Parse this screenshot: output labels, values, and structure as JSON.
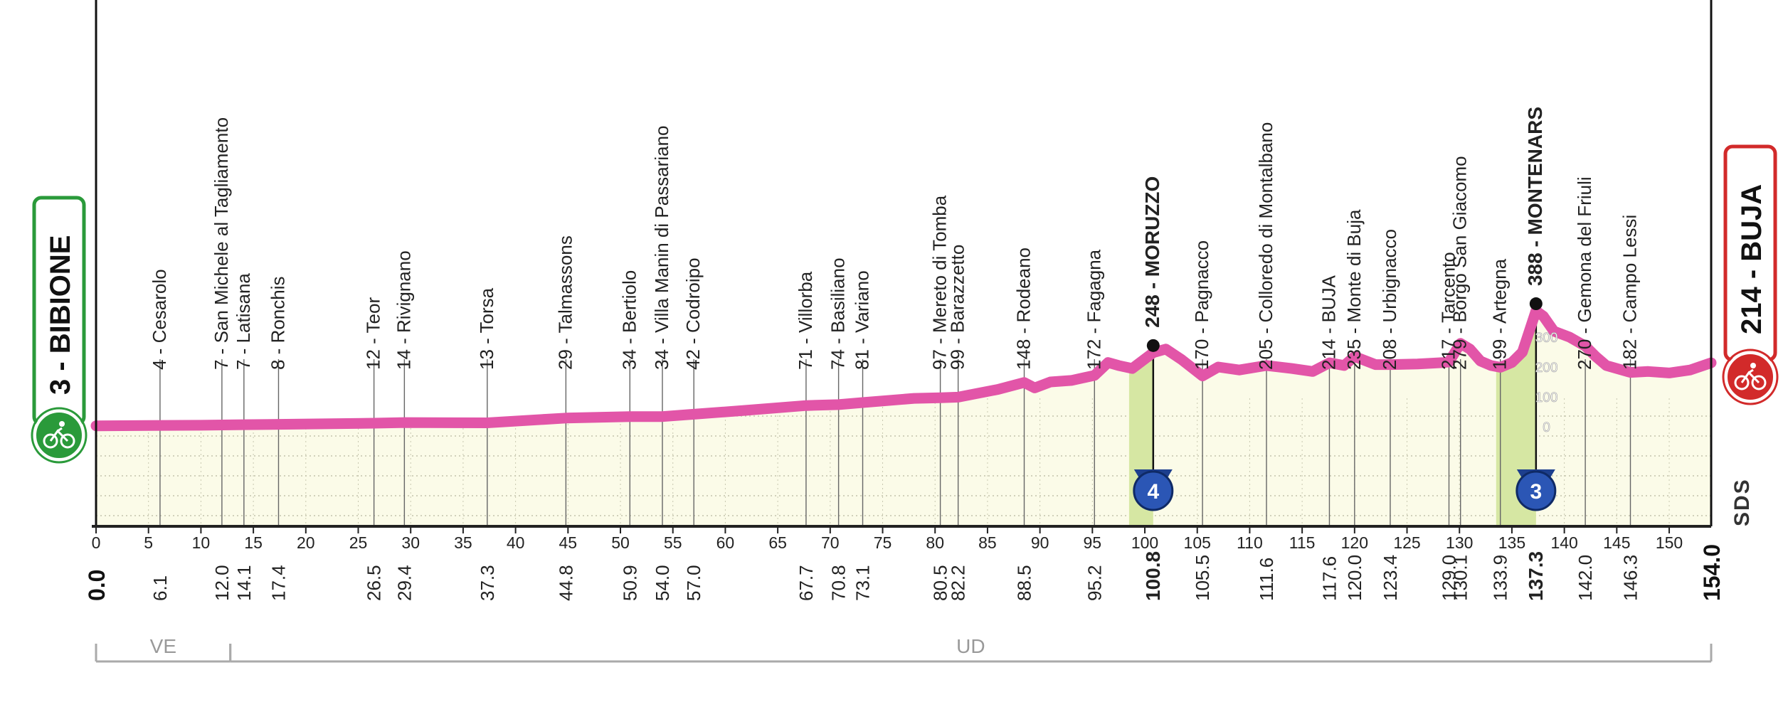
{
  "chart_data": {
    "type": "area",
    "colors": {
      "profile_line": "#e255a8",
      "fill": "#fbfbe8",
      "climb_fill": "#d6e7a3",
      "start_badge": "#2a9a3a",
      "finish_badge": "#d22a2a",
      "axis": "#222222",
      "region_line": "#aaaaaa"
    },
    "xlim": [
      0,
      154
    ],
    "axis_ticks": [
      0,
      5,
      10,
      15,
      20,
      25,
      30,
      35,
      40,
      45,
      50,
      55,
      60,
      65,
      70,
      75,
      80,
      85,
      90,
      95,
      100,
      105,
      110,
      115,
      120,
      125,
      130,
      135,
      140,
      145,
      150
    ],
    "inner_scale": [
      "0",
      "100",
      "200",
      "300"
    ],
    "profile": [
      [
        0,
        3
      ],
      [
        5,
        4
      ],
      [
        10,
        5
      ],
      [
        14.1,
        7
      ],
      [
        17.4,
        8
      ],
      [
        26.5,
        12
      ],
      [
        29.4,
        14
      ],
      [
        37.3,
        13
      ],
      [
        44.8,
        29
      ],
      [
        50.9,
        34
      ],
      [
        54,
        34
      ],
      [
        57,
        42
      ],
      [
        62,
        55
      ],
      [
        67.7,
        71
      ],
      [
        70.8,
        74
      ],
      [
        73.1,
        81
      ],
      [
        78,
        95
      ],
      [
        80.5,
        97
      ],
      [
        82.2,
        99
      ],
      [
        86,
        125
      ],
      [
        88.5,
        148
      ],
      [
        89.5,
        130
      ],
      [
        91,
        150
      ],
      [
        93,
        155
      ],
      [
        95.2,
        172
      ],
      [
        96.5,
        215
      ],
      [
        97.5,
        205
      ],
      [
        98.8,
        195
      ],
      [
        100.8,
        248
      ],
      [
        102,
        260
      ],
      [
        103.5,
        225
      ],
      [
        105.5,
        170
      ],
      [
        107,
        200
      ],
      [
        109,
        190
      ],
      [
        111.6,
        205
      ],
      [
        114,
        195
      ],
      [
        116,
        185
      ],
      [
        117.6,
        214
      ],
      [
        119,
        205
      ],
      [
        120,
        235
      ],
      [
        122,
        208
      ],
      [
        123.4,
        208
      ],
      [
        126,
        210
      ],
      [
        128.5,
        215
      ],
      [
        129,
        217
      ],
      [
        130.1,
        279
      ],
      [
        131,
        260
      ],
      [
        132,
        220
      ],
      [
        133,
        205
      ],
      [
        133.9,
        199
      ],
      [
        135,
        215
      ],
      [
        136,
        250
      ],
      [
        137.3,
        388
      ],
      [
        138,
        370
      ],
      [
        139,
        320
      ],
      [
        140.5,
        300
      ],
      [
        142,
        270
      ],
      [
        143,
        235
      ],
      [
        144,
        205
      ],
      [
        146.3,
        182
      ],
      [
        148,
        185
      ],
      [
        150,
        180
      ],
      [
        152,
        190
      ],
      [
        154,
        214
      ]
    ],
    "climbs": [
      {
        "start": 98.5,
        "end": 100.8,
        "label": "248 - MORUZZO",
        "km": 100.8,
        "category": "4"
      },
      {
        "start": 133.5,
        "end": 137.3,
        "label": "388 - MONTENARS",
        "km": 137.3,
        "category": "3"
      }
    ],
    "waypoints": [
      {
        "km": 6.1,
        "label": "4 - Cesarolo",
        "dist": "6.1",
        "top": false
      },
      {
        "km": 12.0,
        "label": "7 - San Michele al Tagliamento",
        "dist": "12.0",
        "top": false
      },
      {
        "km": 14.1,
        "label": "7 - Latisana",
        "dist": "14.1",
        "top": false
      },
      {
        "km": 17.4,
        "label": "8 - Ronchis",
        "dist": "17.4",
        "top": false
      },
      {
        "km": 26.5,
        "label": "12 - Teor",
        "dist": "26.5",
        "top": false
      },
      {
        "km": 29.4,
        "label": "14 - Rivignano",
        "dist": "29.4",
        "top": false
      },
      {
        "km": 37.3,
        "label": "13 - Torsa",
        "dist": "37.3",
        "top": false
      },
      {
        "km": 44.8,
        "label": "29 - Talmassons",
        "dist": "44.8",
        "top": false
      },
      {
        "km": 50.9,
        "label": "34 - Bertiolo",
        "dist": "50.9",
        "top": false
      },
      {
        "km": 54.0,
        "label": "34 - Villa Manin di Passariano",
        "dist": "54.0",
        "top": false
      },
      {
        "km": 57.0,
        "label": "42 - Codroipo",
        "dist": "57.0",
        "top": false
      },
      {
        "km": 67.7,
        "label": "71 - Villorba",
        "dist": "67.7",
        "top": false
      },
      {
        "km": 70.8,
        "label": "74 - Basiliano",
        "dist": "70.8",
        "top": false
      },
      {
        "km": 73.1,
        "label": "81 - Variano",
        "dist": "73.1",
        "top": false
      },
      {
        "km": 80.5,
        "label": "97 - Mereto di Tomba",
        "dist": "80.5",
        "top": false
      },
      {
        "km": 82.2,
        "label": "99 - Barazzetto",
        "dist": "82.2",
        "top": false
      },
      {
        "km": 88.5,
        "label": "148 - Rodeano",
        "dist": "88.5",
        "top": false
      },
      {
        "km": 95.2,
        "label": "172 - Fagagna",
        "dist": "95.2",
        "top": false
      },
      {
        "km": 100.8,
        "label": "248 - MORUZZO",
        "dist": "100.8",
        "top": true
      },
      {
        "km": 105.5,
        "label": "170 - Pagnacco",
        "dist": "105.5",
        "top": false
      },
      {
        "km": 111.6,
        "label": "205 - Colloredo di Montalbano",
        "dist": "111.6",
        "top": false
      },
      {
        "km": 117.6,
        "label": "214 - BUJA",
        "dist": "117.6",
        "top": false
      },
      {
        "km": 120.0,
        "label": "235 - Monte di Buja",
        "dist": "120.0",
        "top": false
      },
      {
        "km": 123.4,
        "label": "208 - Urbignacco",
        "dist": "123.4",
        "top": false
      },
      {
        "km": 129.0,
        "label": "217 - Tarcento",
        "dist": "129.0",
        "top": false
      },
      {
        "km": 130.1,
        "label": "279 - Borgo San Giacomo",
        "dist": "130.1",
        "top": false
      },
      {
        "km": 133.9,
        "label": "199 - Artegna",
        "dist": "133.9",
        "top": false
      },
      {
        "km": 137.3,
        "label": "388 - MONTENARS",
        "dist": "137.3",
        "top": true
      },
      {
        "km": 142.0,
        "label": "270 - Gemona del Friuli",
        "dist": "142.0",
        "top": false
      },
      {
        "km": 146.3,
        "label": "182 - Campo Lessi",
        "dist": "146.3",
        "top": false
      }
    ],
    "start": {
      "label": "3 - BIBIONE",
      "dist": "0.0"
    },
    "finish": {
      "label": "214 - BUJA",
      "dist": "154.0"
    },
    "regions": [
      {
        "label": "VE",
        "from": 0,
        "to": 12.8
      },
      {
        "label": "UD",
        "from": 12.8,
        "to": 154
      }
    ],
    "logo_text": "SDS"
  }
}
